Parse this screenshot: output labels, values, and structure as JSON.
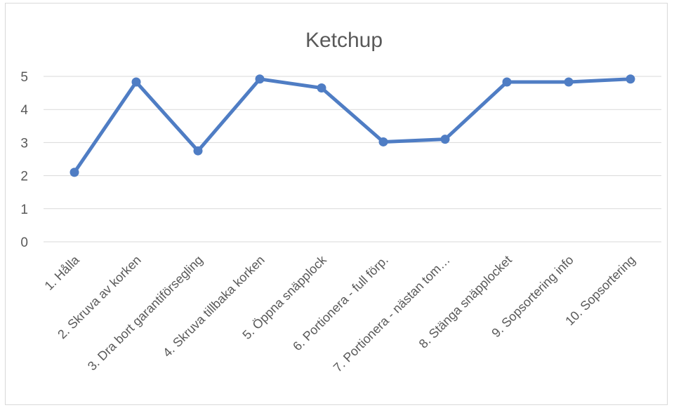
{
  "chart_data": {
    "type": "line",
    "title": "Ketchup",
    "xlabel": "",
    "ylabel": "",
    "categories": [
      "1. Hålla",
      "2. Skruva av korken",
      "3. Dra bort garantiförsegling",
      "4. Skruva tillbaka korken",
      "5. Öppna snäpplock",
      "6. Portionera - full förp.",
      "7. Portionera - nästan tom…",
      "8. Stänga snäpplocket",
      "9. Sopsortering info",
      "10. Sopsortering"
    ],
    "series": [
      {
        "values": [
          2.1,
          4.83,
          2.75,
          4.92,
          4.65,
          3.02,
          3.1,
          4.83,
          4.83,
          4.92
        ]
      }
    ],
    "ylim": [
      0,
      5
    ],
    "yticks": [
      0,
      1,
      2,
      3,
      4,
      5
    ],
    "grid": true,
    "legend": "none",
    "colors": {
      "line": "#4f7dc4",
      "grid": "#d9d9d9",
      "text": "#595959"
    }
  }
}
